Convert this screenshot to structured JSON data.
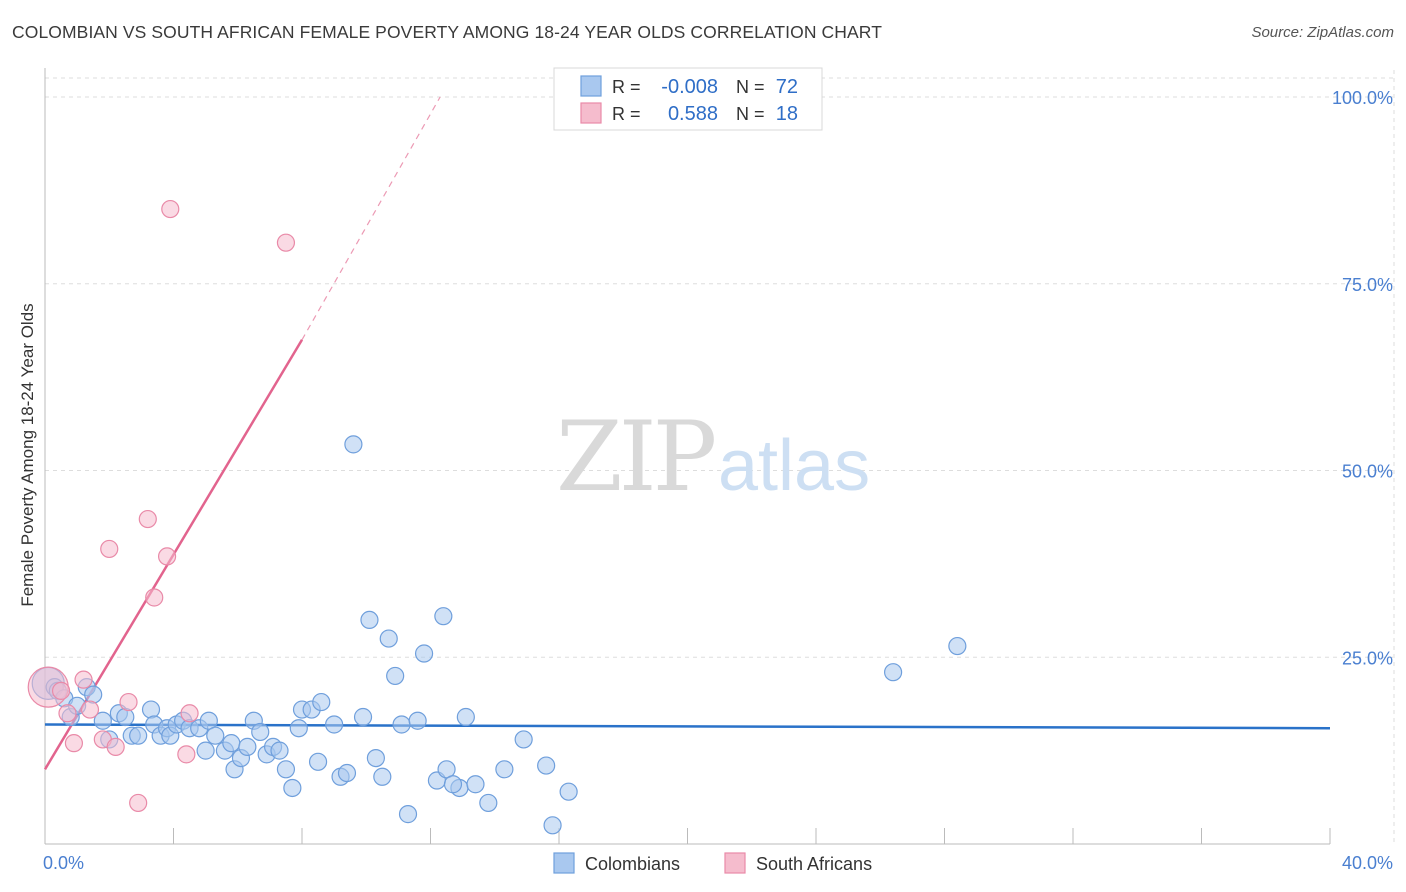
{
  "title": "COLOMBIAN VS SOUTH AFRICAN FEMALE POVERTY AMONG 18-24 YEAR OLDS CORRELATION CHART",
  "source": "Source: ZipAtlas.com",
  "watermark": {
    "zip": "ZIP",
    "atlas": "atlas"
  },
  "colors": {
    "blue_fill": "#a9c8ef",
    "blue_stroke": "#6f9fdc",
    "blue_line": "#2a72c9",
    "pink_fill": "#f5bccd",
    "pink_stroke": "#e98aa8",
    "pink_line": "#e2648e",
    "axis_text": "#4a7fd0",
    "grid": "#dddddd"
  },
  "legend": {
    "rows": [
      {
        "r_label": "R =",
        "r_value": "-0.008",
        "n_label": "N =",
        "n_value": "72",
        "series": "blue"
      },
      {
        "r_label": "R =",
        "r_value": "0.588",
        "n_label": "N =",
        "n_value": "18",
        "series": "pink"
      }
    ]
  },
  "chart_data": {
    "type": "scatter",
    "title": "COLOMBIAN VS SOUTH AFRICAN FEMALE POVERTY AMONG 18-24 YEAR OLDS CORRELATION CHART",
    "xlabel": "",
    "ylabel": "Female Poverty Among 18-24 Year Olds",
    "xlim": [
      0,
      40
    ],
    "ylim": [
      0,
      100
    ],
    "x_tick_labels": [
      "0.0%",
      "40.0%"
    ],
    "y_tick_labels": [
      "25.0%",
      "50.0%",
      "75.0%",
      "100.0%"
    ],
    "y_ticks": [
      25,
      50,
      75,
      100
    ],
    "grid": true,
    "legend_position": "top-center",
    "series": [
      {
        "name": "Colombians",
        "trend": {
          "x0": 0,
          "y0": 16.0,
          "x1": 40,
          "y1": 15.5
        },
        "points": [
          [
            0.1,
            21.5
          ],
          [
            0.3,
            21.0
          ],
          [
            0.4,
            20.5
          ],
          [
            0.6,
            19.5
          ],
          [
            0.8,
            17.0
          ],
          [
            1.0,
            18.5
          ],
          [
            1.3,
            21.0
          ],
          [
            1.5,
            20.0
          ],
          [
            1.8,
            16.5
          ],
          [
            2.0,
            14.0
          ],
          [
            2.3,
            17.5
          ],
          [
            2.5,
            17.0
          ],
          [
            2.7,
            14.5
          ],
          [
            2.9,
            14.5
          ],
          [
            3.3,
            18.0
          ],
          [
            3.4,
            16.0
          ],
          [
            3.6,
            14.5
          ],
          [
            3.8,
            15.5
          ],
          [
            3.9,
            14.5
          ],
          [
            4.1,
            16.0
          ],
          [
            4.3,
            16.5
          ],
          [
            4.5,
            15.5
          ],
          [
            4.8,
            15.5
          ],
          [
            5.0,
            12.5
          ],
          [
            5.1,
            16.5
          ],
          [
            5.3,
            14.5
          ],
          [
            5.6,
            12.5
          ],
          [
            5.8,
            13.5
          ],
          [
            5.9,
            10.0
          ],
          [
            6.1,
            11.5
          ],
          [
            6.3,
            13.0
          ],
          [
            6.5,
            16.5
          ],
          [
            6.7,
            15.0
          ],
          [
            6.9,
            12.0
          ],
          [
            7.1,
            13.0
          ],
          [
            7.3,
            12.5
          ],
          [
            7.5,
            10.0
          ],
          [
            7.7,
            7.5
          ],
          [
            7.9,
            15.5
          ],
          [
            8.0,
            18.0
          ],
          [
            8.3,
            18.0
          ],
          [
            8.5,
            11.0
          ],
          [
            8.6,
            19.0
          ],
          [
            9.0,
            16.0
          ],
          [
            9.2,
            9.0
          ],
          [
            9.4,
            9.5
          ],
          [
            9.6,
            53.5
          ],
          [
            9.9,
            17.0
          ],
          [
            10.1,
            30.0
          ],
          [
            10.3,
            11.5
          ],
          [
            10.5,
            9.0
          ],
          [
            10.7,
            27.5
          ],
          [
            10.9,
            22.5
          ],
          [
            11.1,
            16.0
          ],
          [
            11.3,
            4.0
          ],
          [
            11.6,
            16.5
          ],
          [
            11.8,
            25.5
          ],
          [
            12.2,
            8.5
          ],
          [
            12.4,
            30.5
          ],
          [
            12.5,
            10.0
          ],
          [
            12.9,
            7.5
          ],
          [
            13.1,
            17.0
          ],
          [
            13.4,
            8.0
          ],
          [
            13.8,
            5.5
          ],
          [
            14.3,
            10.0
          ],
          [
            14.9,
            14.0
          ],
          [
            15.6,
            10.5
          ],
          [
            15.8,
            2.5
          ],
          [
            16.3,
            7.0
          ],
          [
            26.4,
            23.0
          ],
          [
            28.4,
            26.5
          ],
          [
            12.7,
            8.0
          ]
        ]
      },
      {
        "name": "South Africans",
        "trend": {
          "x0": 0,
          "y0": 10.0,
          "x1": 8.0,
          "y1": 67.5,
          "dash_x1": 12.3,
          "dash_y1": 100
        },
        "points": [
          [
            0.1,
            21.0
          ],
          [
            0.5,
            20.5
          ],
          [
            0.7,
            17.5
          ],
          [
            0.9,
            13.5
          ],
          [
            1.2,
            22.0
          ],
          [
            1.4,
            18.0
          ],
          [
            1.8,
            14.0
          ],
          [
            2.0,
            39.5
          ],
          [
            2.2,
            13.0
          ],
          [
            2.6,
            19.0
          ],
          [
            2.9,
            5.5
          ],
          [
            3.2,
            43.5
          ],
          [
            3.4,
            33.0
          ],
          [
            3.8,
            38.5
          ],
          [
            3.9,
            85.0
          ],
          [
            4.4,
            12.0
          ],
          [
            4.5,
            17.5
          ],
          [
            7.5,
            80.5
          ]
        ]
      }
    ]
  },
  "bottom_legend": [
    {
      "label": "Colombians",
      "series": "blue"
    },
    {
      "label": "South Africans",
      "series": "pink"
    }
  ]
}
